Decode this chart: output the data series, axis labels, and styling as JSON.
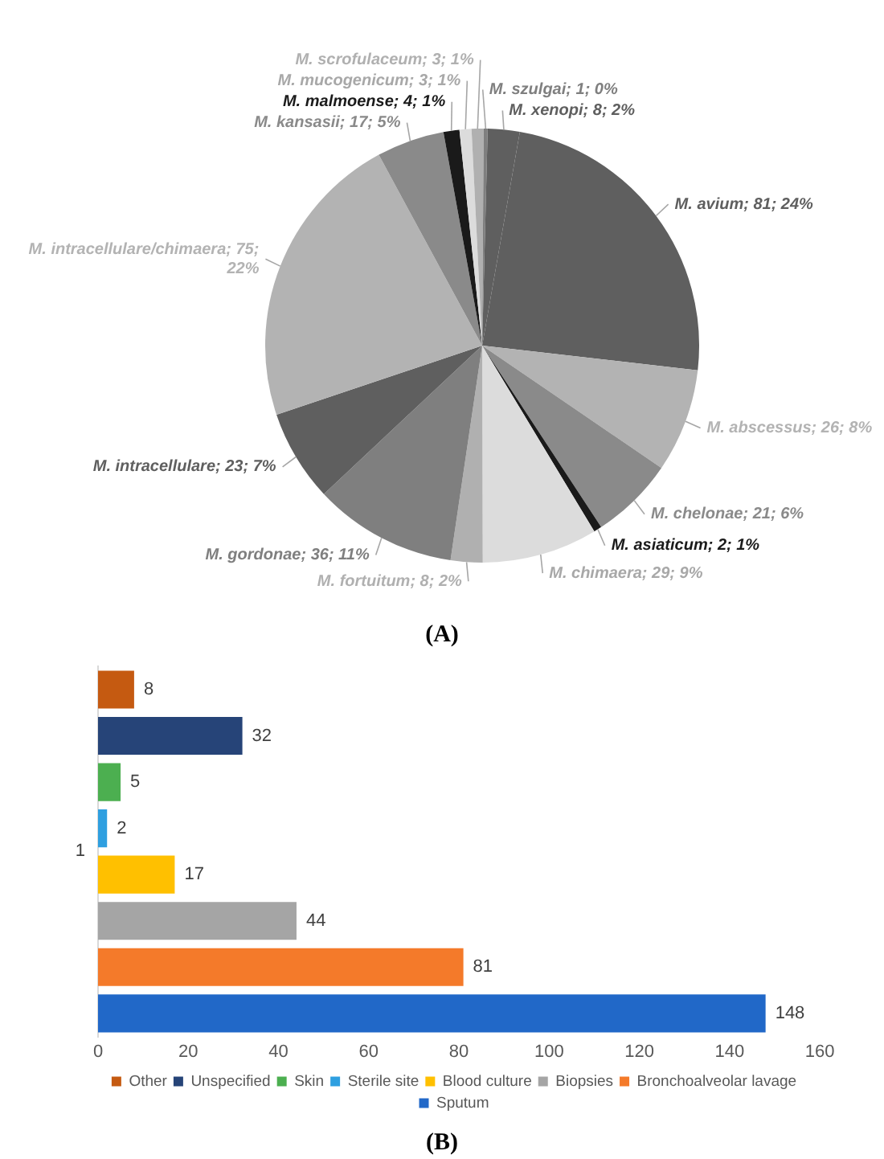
{
  "chart_data": [
    {
      "type": "pie",
      "categories": [
        "M. avium",
        "M. abscessus",
        "M. chelonae",
        "M. asiaticum",
        "M. chimaera",
        "M. fortuitum",
        "M. gordonae",
        "M. intracellulare",
        "M. intracellulare/chimaera",
        "M. kansasii",
        "M. malmoense",
        "M. mucogenicum",
        "M. scrofulaceum",
        "M. szulgai",
        "M. xenopi"
      ],
      "values": [
        81,
        26,
        21,
        2,
        29,
        8,
        36,
        23,
        75,
        17,
        4,
        3,
        3,
        1,
        8
      ],
      "colors": [
        "#5f5f5f",
        "#b3b3b3",
        "#8a8a8a",
        "#1a1a1a",
        "#dcdcdc",
        "#b0b0b0",
        "#7f7f7f",
        "#5f5f5f",
        "#b3b3b3",
        "#8a8a8a",
        "#1a1a1a",
        "#dcdcdc",
        "#b0b0b0",
        "#7f7f7f",
        "#5f5f5f"
      ],
      "value_labels": [
        "81; 24%",
        "26; 8%",
        "21; 6%",
        "2; 1%",
        "29; 9%",
        "8; 2%",
        "36; 11%",
        "23; 7%",
        "75; 22%",
        "17; 5%",
        "4; 1%",
        "3; 1%",
        "3; 1%",
        "1; 0%",
        "8; 2%"
      ],
      "annotations": [
        "(A)"
      ]
    },
    {
      "type": "bar",
      "orientation": "horizontal",
      "categories": [
        null,
        null,
        null,
        null,
        null,
        null,
        null,
        null
      ],
      "ylabel": "1",
      "series": [
        {
          "name": "Other",
          "color": "#c55a11",
          "values": [
            8,
            null,
            null,
            null,
            null,
            null,
            null,
            null
          ]
        },
        {
          "name": "Unspecified",
          "color": "#264478",
          "values": [
            null,
            32,
            null,
            null,
            null,
            null,
            null,
            null
          ]
        },
        {
          "name": "Skin",
          "color": "#4caf50",
          "values": [
            null,
            null,
            5,
            null,
            null,
            null,
            null,
            null
          ]
        },
        {
          "name": "Sterile site",
          "color": "#2e9fe0",
          "values": [
            null,
            null,
            null,
            2,
            null,
            null,
            null,
            null
          ]
        },
        {
          "name": "Blood culture",
          "color": "#ffc000",
          "values": [
            null,
            null,
            null,
            null,
            17,
            null,
            null,
            null
          ]
        },
        {
          "name": "Biopsies",
          "color": "#a5a5a5",
          "values": [
            null,
            null,
            null,
            null,
            null,
            44,
            null,
            null
          ]
        },
        {
          "name": "Bronchoalveolar lavage",
          "color": "#f47a2a",
          "values": [
            null,
            null,
            null,
            null,
            null,
            null,
            81,
            null
          ]
        },
        {
          "name": "Sputum",
          "color": "#2168c8",
          "values": [
            null,
            null,
            null,
            null,
            null,
            null,
            null,
            148
          ]
        }
      ],
      "xlim": [
        0,
        160
      ],
      "xticks": [
        0,
        20,
        40,
        60,
        80,
        100,
        120,
        140,
        160
      ],
      "data_labels": true,
      "legend": "bottom",
      "annotations": [
        "(B)"
      ]
    }
  ]
}
